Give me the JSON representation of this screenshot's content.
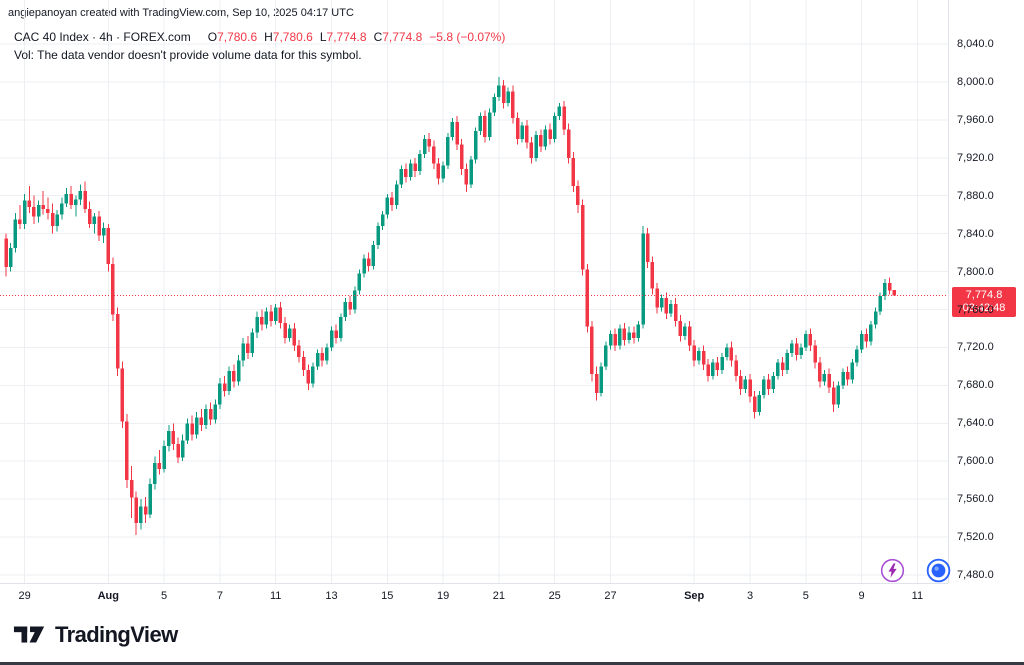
{
  "attribution": "angiepanoyan created with TradingView.com, Sep 10, 2025 04:17 UTC",
  "legend": {
    "symbol_title": "CAC 40 Index · 4h · FOREX.com",
    "ohlc": [
      {
        "k": "O",
        "v": "7,780.6"
      },
      {
        "k": "H",
        "v": "7,780.6"
      },
      {
        "k": "L",
        "v": "7,774.8"
      },
      {
        "k": "C",
        "v": "7,774.8"
      }
    ],
    "change": "−5.8 (−0.07%)",
    "vol_note": "Vol: The data vendor doesn't provide volume data for this symbol."
  },
  "price_axis": {
    "ticks": [
      {
        "label": "8,040.0",
        "value": 8040
      },
      {
        "label": "8,000.0",
        "value": 8000
      },
      {
        "label": "7,960.0",
        "value": 7960
      },
      {
        "label": "7,920.0",
        "value": 7920
      },
      {
        "label": "7,880.0",
        "value": 7880
      },
      {
        "label": "7,840.0",
        "value": 7840
      },
      {
        "label": "7,800.0",
        "value": 7800
      },
      {
        "label": "7,760.0",
        "value": 7760
      },
      {
        "label": "7,720.0",
        "value": 7720
      },
      {
        "label": "7,680.0",
        "value": 7680
      },
      {
        "label": "7,640.0",
        "value": 7640
      },
      {
        "label": "7,600.0",
        "value": 7600
      },
      {
        "label": "7,560.0",
        "value": 7560
      },
      {
        "label": "7,520.0",
        "value": 7520
      },
      {
        "label": "7,480.0",
        "value": 7480
      }
    ],
    "last_price_label": "7,774.8",
    "countdown": "03:42:48"
  },
  "time_axis": {
    "labels": [
      {
        "label": "29",
        "index": 4,
        "bold": false
      },
      {
        "label": "Aug",
        "index": 22,
        "bold": true
      },
      {
        "label": "5",
        "index": 34,
        "bold": false
      },
      {
        "label": "7",
        "index": 46,
        "bold": false
      },
      {
        "label": "11",
        "index": 58,
        "bold": false
      },
      {
        "label": "13",
        "index": 70,
        "bold": false
      },
      {
        "label": "15",
        "index": 82,
        "bold": false
      },
      {
        "label": "19",
        "index": 94,
        "bold": false
      },
      {
        "label": "21",
        "index": 106,
        "bold": false
      },
      {
        "label": "25",
        "index": 118,
        "bold": false
      },
      {
        "label": "27",
        "index": 130,
        "bold": false
      },
      {
        "label": "Sep",
        "index": 148,
        "bold": true
      },
      {
        "label": "3",
        "index": 160,
        "bold": false
      },
      {
        "label": "5",
        "index": 172,
        "bold": false
      },
      {
        "label": "9",
        "index": 184,
        "bold": false
      },
      {
        "label": "11",
        "index": 196,
        "bold": false
      }
    ]
  },
  "footer": {
    "logo_text": "TradingView"
  },
  "colors": {
    "up": "#089981",
    "down": "#F23645",
    "grid": "#EDEFF3",
    "axis_border": "#E0E3EB",
    "axis_text": "#131722",
    "badge": "#F23645",
    "flash_icon": "#9C27B0",
    "blue_icon": "#2962FF"
  },
  "chart_data": {
    "type": "candlestick",
    "symbol": "CAC 40 Index",
    "interval": "4h",
    "provider": "FOREX.com",
    "title": "CAC 40 Index · 4h · FOREX.com",
    "y_range": [
      7480,
      8040
    ],
    "grid": true,
    "last_price": 7774.8,
    "last_change": -5.8,
    "last_change_pct": -0.07,
    "candle_format": [
      "open",
      "high",
      "low",
      "close"
    ],
    "candles": [
      [
        7835,
        7840,
        7795,
        7805
      ],
      [
        7805,
        7830,
        7800,
        7825
      ],
      [
        7825,
        7862,
        7820,
        7855
      ],
      [
        7855,
        7870,
        7845,
        7850
      ],
      [
        7850,
        7882,
        7845,
        7875
      ],
      [
        7875,
        7890,
        7862,
        7868
      ],
      [
        7868,
        7880,
        7850,
        7858
      ],
      [
        7858,
        7875,
        7852,
        7870
      ],
      [
        7870,
        7885,
        7860,
        7866
      ],
      [
        7866,
        7878,
        7855,
        7862
      ],
      [
        7862,
        7872,
        7840,
        7848
      ],
      [
        7848,
        7865,
        7842,
        7860
      ],
      [
        7860,
        7878,
        7855,
        7872
      ],
      [
        7872,
        7888,
        7868,
        7882
      ],
      [
        7882,
        7890,
        7866,
        7870
      ],
      [
        7870,
        7880,
        7858,
        7876
      ],
      [
        7876,
        7892,
        7870,
        7885
      ],
      [
        7885,
        7895,
        7862,
        7866
      ],
      [
        7866,
        7874,
        7846,
        7850
      ],
      [
        7850,
        7862,
        7840,
        7858
      ],
      [
        7858,
        7864,
        7832,
        7838
      ],
      [
        7838,
        7852,
        7830,
        7846
      ],
      [
        7846,
        7850,
        7800,
        7808
      ],
      [
        7808,
        7815,
        7748,
        7755
      ],
      [
        7755,
        7762,
        7690,
        7698
      ],
      [
        7698,
        7705,
        7635,
        7642
      ],
      [
        7642,
        7650,
        7572,
        7580
      ],
      [
        7580,
        7595,
        7540,
        7562
      ],
      [
        7562,
        7568,
        7522,
        7535
      ],
      [
        7535,
        7560,
        7528,
        7552
      ],
      [
        7552,
        7562,
        7535,
        7544
      ],
      [
        7544,
        7582,
        7540,
        7576
      ],
      [
        7576,
        7605,
        7570,
        7598
      ],
      [
        7598,
        7612,
        7586,
        7592
      ],
      [
        7592,
        7622,
        7588,
        7616
      ],
      [
        7616,
        7638,
        7610,
        7632
      ],
      [
        7632,
        7640,
        7612,
        7618
      ],
      [
        7618,
        7625,
        7598,
        7604
      ],
      [
        7604,
        7628,
        7600,
        7622
      ],
      [
        7622,
        7645,
        7618,
        7640
      ],
      [
        7640,
        7648,
        7622,
        7628
      ],
      [
        7628,
        7652,
        7624,
        7646
      ],
      [
        7646,
        7655,
        7632,
        7638
      ],
      [
        7638,
        7660,
        7634,
        7655
      ],
      [
        7655,
        7662,
        7638,
        7644
      ],
      [
        7644,
        7665,
        7640,
        7660
      ],
      [
        7660,
        7688,
        7655,
        7682
      ],
      [
        7682,
        7690,
        7668,
        7674
      ],
      [
        7674,
        7700,
        7670,
        7695
      ],
      [
        7695,
        7702,
        7678,
        7684
      ],
      [
        7684,
        7712,
        7680,
        7706
      ],
      [
        7706,
        7730,
        7700,
        7724
      ],
      [
        7724,
        7732,
        7708,
        7714
      ],
      [
        7714,
        7740,
        7710,
        7736
      ],
      [
        7736,
        7758,
        7730,
        7752
      ],
      [
        7752,
        7760,
        7738,
        7744
      ],
      [
        7744,
        7762,
        7740,
        7758
      ],
      [
        7758,
        7765,
        7742,
        7748
      ],
      [
        7748,
        7766,
        7744,
        7762
      ],
      [
        7762,
        7768,
        7740,
        7746
      ],
      [
        7746,
        7752,
        7724,
        7730
      ],
      [
        7730,
        7744,
        7726,
        7740
      ],
      [
        7740,
        7746,
        7716,
        7722
      ],
      [
        7722,
        7728,
        7704,
        7710
      ],
      [
        7710,
        7716,
        7690,
        7696
      ],
      [
        7696,
        7702,
        7675,
        7682
      ],
      [
        7682,
        7704,
        7678,
        7700
      ],
      [
        7700,
        7718,
        7696,
        7714
      ],
      [
        7714,
        7720,
        7700,
        7706
      ],
      [
        7706,
        7724,
        7702,
        7720
      ],
      [
        7720,
        7742,
        7716,
        7738
      ],
      [
        7738,
        7744,
        7724,
        7730
      ],
      [
        7730,
        7756,
        7726,
        7752
      ],
      [
        7752,
        7772,
        7748,
        7768
      ],
      [
        7768,
        7774,
        7754,
        7760
      ],
      [
        7760,
        7784,
        7756,
        7780
      ],
      [
        7780,
        7802,
        7776,
        7798
      ],
      [
        7798,
        7818,
        7794,
        7814
      ],
      [
        7814,
        7820,
        7800,
        7806
      ],
      [
        7806,
        7832,
        7802,
        7828
      ],
      [
        7828,
        7852,
        7824,
        7848
      ],
      [
        7848,
        7864,
        7844,
        7860
      ],
      [
        7860,
        7882,
        7856,
        7878
      ],
      [
        7878,
        7884,
        7864,
        7870
      ],
      [
        7870,
        7896,
        7866,
        7892
      ],
      [
        7892,
        7912,
        7888,
        7908
      ],
      [
        7908,
        7914,
        7894,
        7900
      ],
      [
        7900,
        7918,
        7896,
        7914
      ],
      [
        7914,
        7920,
        7900,
        7906
      ],
      [
        7906,
        7928,
        7902,
        7924
      ],
      [
        7924,
        7944,
        7920,
        7940
      ],
      [
        7940,
        7946,
        7926,
        7932
      ],
      [
        7932,
        7938,
        7908,
        7914
      ],
      [
        7914,
        7920,
        7892,
        7898
      ],
      [
        7898,
        7916,
        7894,
        7912
      ],
      [
        7912,
        7946,
        7908,
        7942
      ],
      [
        7942,
        7962,
        7938,
        7958
      ],
      [
        7958,
        7964,
        7928,
        7934
      ],
      [
        7934,
        7940,
        7902,
        7908
      ],
      [
        7908,
        7914,
        7884,
        7892
      ],
      [
        7892,
        7922,
        7888,
        7918
      ],
      [
        7918,
        7952,
        7914,
        7948
      ],
      [
        7948,
        7968,
        7944,
        7964
      ],
      [
        7964,
        7970,
        7936,
        7942
      ],
      [
        7942,
        7972,
        7938,
        7968
      ],
      [
        7968,
        7988,
        7964,
        7984
      ],
      [
        7984,
        8005,
        7980,
        7996
      ],
      [
        7996,
        8002,
        7972,
        7978
      ],
      [
        7978,
        7994,
        7974,
        7990
      ],
      [
        7990,
        7996,
        7956,
        7962
      ],
      [
        7962,
        7968,
        7934,
        7940
      ],
      [
        7940,
        7958,
        7936,
        7954
      ],
      [
        7954,
        7960,
        7930,
        7936
      ],
      [
        7936,
        7942,
        7914,
        7920
      ],
      [
        7920,
        7948,
        7916,
        7944
      ],
      [
        7944,
        7950,
        7926,
        7932
      ],
      [
        7932,
        7954,
        7928,
        7950
      ],
      [
        7950,
        7956,
        7934,
        7940
      ],
      [
        7940,
        7968,
        7936,
        7964
      ],
      [
        7964,
        7978,
        7960,
        7974
      ],
      [
        7974,
        7980,
        7944,
        7950
      ],
      [
        7950,
        7956,
        7914,
        7920
      ],
      [
        7920,
        7926,
        7884,
        7890
      ],
      [
        7890,
        7896,
        7862,
        7870
      ],
      [
        7870,
        7876,
        7796,
        7802
      ],
      [
        7802,
        7808,
        7736,
        7742
      ],
      [
        7742,
        7748,
        7684,
        7692
      ],
      [
        7692,
        7700,
        7664,
        7672
      ],
      [
        7672,
        7704,
        7668,
        7700
      ],
      [
        7700,
        7726,
        7696,
        7722
      ],
      [
        7722,
        7738,
        7718,
        7734
      ],
      [
        7734,
        7740,
        7716,
        7722
      ],
      [
        7722,
        7744,
        7718,
        7740
      ],
      [
        7740,
        7746,
        7722,
        7728
      ],
      [
        7728,
        7742,
        7724,
        7736
      ],
      [
        7736,
        7742,
        7724,
        7730
      ],
      [
        7730,
        7748,
        7726,
        7744
      ],
      [
        7744,
        7848,
        7740,
        7840
      ],
      [
        7840,
        7846,
        7804,
        7810
      ],
      [
        7810,
        7816,
        7776,
        7782
      ],
      [
        7782,
        7788,
        7756,
        7762
      ],
      [
        7762,
        7776,
        7758,
        7772
      ],
      [
        7772,
        7778,
        7750,
        7756
      ],
      [
        7756,
        7770,
        7752,
        7766
      ],
      [
        7766,
        7772,
        7742,
        7748
      ],
      [
        7748,
        7754,
        7726,
        7732
      ],
      [
        7732,
        7746,
        7728,
        7742
      ],
      [
        7742,
        7748,
        7716,
        7722
      ],
      [
        7722,
        7728,
        7700,
        7706
      ],
      [
        7706,
        7720,
        7702,
        7716
      ],
      [
        7716,
        7722,
        7696,
        7702
      ],
      [
        7702,
        7708,
        7684,
        7690
      ],
      [
        7690,
        7708,
        7686,
        7704
      ],
      [
        7704,
        7710,
        7690,
        7696
      ],
      [
        7696,
        7714,
        7692,
        7710
      ],
      [
        7710,
        7724,
        7706,
        7720
      ],
      [
        7720,
        7726,
        7700,
        7706
      ],
      [
        7706,
        7712,
        7684,
        7690
      ],
      [
        7690,
        7696,
        7670,
        7676
      ],
      [
        7676,
        7690,
        7672,
        7686
      ],
      [
        7686,
        7692,
        7662,
        7668
      ],
      [
        7668,
        7674,
        7645,
        7652
      ],
      [
        7652,
        7674,
        7648,
        7670
      ],
      [
        7670,
        7690,
        7666,
        7686
      ],
      [
        7686,
        7692,
        7670,
        7676
      ],
      [
        7676,
        7694,
        7672,
        7690
      ],
      [
        7690,
        7708,
        7686,
        7704
      ],
      [
        7704,
        7710,
        7690,
        7696
      ],
      [
        7696,
        7718,
        7692,
        7714
      ],
      [
        7714,
        7728,
        7710,
        7724
      ],
      [
        7724,
        7730,
        7706,
        7712
      ],
      [
        7712,
        7724,
        7708,
        7720
      ],
      [
        7720,
        7738,
        7716,
        7734
      ],
      [
        7734,
        7740,
        7716,
        7722
      ],
      [
        7722,
        7728,
        7698,
        7704
      ],
      [
        7704,
        7710,
        7678,
        7684
      ],
      [
        7684,
        7696,
        7680,
        7692
      ],
      [
        7692,
        7698,
        7672,
        7678
      ],
      [
        7678,
        7684,
        7652,
        7660
      ],
      [
        7660,
        7684,
        7656,
        7680
      ],
      [
        7680,
        7698,
        7676,
        7694
      ],
      [
        7694,
        7700,
        7680,
        7686
      ],
      [
        7686,
        7708,
        7682,
        7704
      ],
      [
        7704,
        7722,
        7700,
        7718
      ],
      [
        7718,
        7738,
        7714,
        7734
      ],
      [
        7734,
        7740,
        7720,
        7726
      ],
      [
        7726,
        7748,
        7722,
        7744
      ],
      [
        7744,
        7762,
        7740,
        7758
      ],
      [
        7758,
        7778,
        7754,
        7774
      ],
      [
        7774,
        7792,
        7770,
        7788
      ],
      [
        7788,
        7794,
        7776,
        7780
      ],
      [
        7780.6,
        7780.6,
        7774.8,
        7774.8
      ]
    ]
  }
}
